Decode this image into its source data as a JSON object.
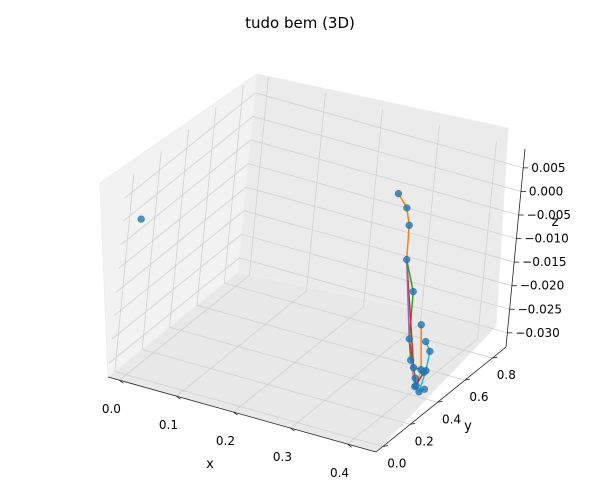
{
  "chart_data": {
    "type": "scatter",
    "projection": "3d",
    "title": "tudo bem (3D)",
    "xlabel": "x",
    "ylabel": "y",
    "zlabel": "z",
    "xlim": [
      -0.02,
      0.45
    ],
    "ylim": [
      -0.05,
      0.9
    ],
    "zlim": [
      -0.033,
      0.009
    ],
    "x_ticks": [
      "0.0",
      "0.1",
      "0.2",
      "0.3",
      "0.4"
    ],
    "y_ticks": [
      "0.0",
      "0.2",
      "0.4",
      "0.6",
      "0.8"
    ],
    "z_ticks": [
      "0.005",
      "0.000",
      "−0.005",
      "−0.010",
      "−0.015",
      "−0.020",
      "−0.025",
      "−0.030"
    ],
    "grid": true,
    "marker_color": "#1f77b4",
    "line_colors": [
      "#ff7f0e",
      "#2ca02c",
      "#d62728",
      "#9467bd",
      "#8c564b",
      "#e377c2",
      "#7f7f7f",
      "#bcbd22",
      "#17becf"
    ],
    "points": [
      {
        "x": 0.0,
        "y": 0.0,
        "z": 0.0
      },
      {
        "x": 0.28,
        "y": 0.72,
        "z": -0.002
      },
      {
        "x": 0.3,
        "y": 0.705,
        "z": -0.004
      },
      {
        "x": 0.31,
        "y": 0.69,
        "z": -0.007
      },
      {
        "x": 0.32,
        "y": 0.65,
        "z": -0.013
      },
      {
        "x": 0.345,
        "y": 0.61,
        "z": -0.018
      },
      {
        "x": 0.36,
        "y": 0.545,
        "z": -0.026
      },
      {
        "x": 0.382,
        "y": 0.47,
        "z": -0.028
      },
      {
        "x": 0.398,
        "y": 0.425,
        "z": -0.028
      },
      {
        "x": 0.41,
        "y": 0.39,
        "z": -0.029
      },
      {
        "x": 0.416,
        "y": 0.365,
        "z": -0.03
      },
      {
        "x": 0.425,
        "y": 0.36,
        "z": -0.026
      },
      {
        "x": 0.44,
        "y": 0.33,
        "z": -0.025
      },
      {
        "x": 0.435,
        "y": 0.33,
        "z": -0.019
      },
      {
        "x": 0.435,
        "y": 0.37,
        "z": -0.022
      },
      {
        "x": 0.409,
        "y": 0.402,
        "z": -0.018
      },
      {
        "x": 0.437,
        "y": 0.305,
        "z": -0.029
      },
      {
        "x": 0.44,
        "y": 0.315,
        "z": -0.025
      },
      {
        "x": 0.447,
        "y": 0.3,
        "z": -0.028
      },
      {
        "x": 0.43,
        "y": 0.31,
        "z": -0.028
      }
    ],
    "segments": [
      {
        "from": 1,
        "to": 2,
        "color": "#ff7f0e"
      },
      {
        "from": 2,
        "to": 3,
        "color": "#ff7f0e"
      },
      {
        "from": 3,
        "to": 4,
        "color": "#ff7f0e"
      },
      {
        "from": 4,
        "to": 5,
        "color": "#2ca02c"
      },
      {
        "from": 5,
        "to": 6,
        "color": "#2ca02c"
      },
      {
        "from": 6,
        "to": 7,
        "color": "#2ca02c"
      },
      {
        "from": 4,
        "to": 8,
        "color": "#d62728"
      },
      {
        "from": 4,
        "to": 6,
        "color": "#9467bd"
      },
      {
        "from": 6,
        "to": 9,
        "color": "#8c564b"
      },
      {
        "from": 7,
        "to": 10,
        "color": "#e377c2"
      },
      {
        "from": 8,
        "to": 11,
        "color": "#7f7f7f"
      },
      {
        "from": 11,
        "to": 12,
        "color": "#bcbd22"
      },
      {
        "from": 13,
        "to": 14,
        "color": "#17becf"
      },
      {
        "from": 14,
        "to": 12,
        "color": "#17becf"
      },
      {
        "from": 12,
        "to": 16,
        "color": "#17becf"
      },
      {
        "from": 16,
        "to": 18,
        "color": "#17becf"
      },
      {
        "from": 15,
        "to": 11,
        "color": "#ff7f0e"
      },
      {
        "from": 11,
        "to": 19,
        "color": "#bcbd22"
      },
      {
        "from": 19,
        "to": 17,
        "color": "#e377c2"
      },
      {
        "from": 17,
        "to": 10,
        "color": "#d62728"
      },
      {
        "from": 10,
        "to": 9,
        "color": "#2ca02c"
      }
    ]
  }
}
